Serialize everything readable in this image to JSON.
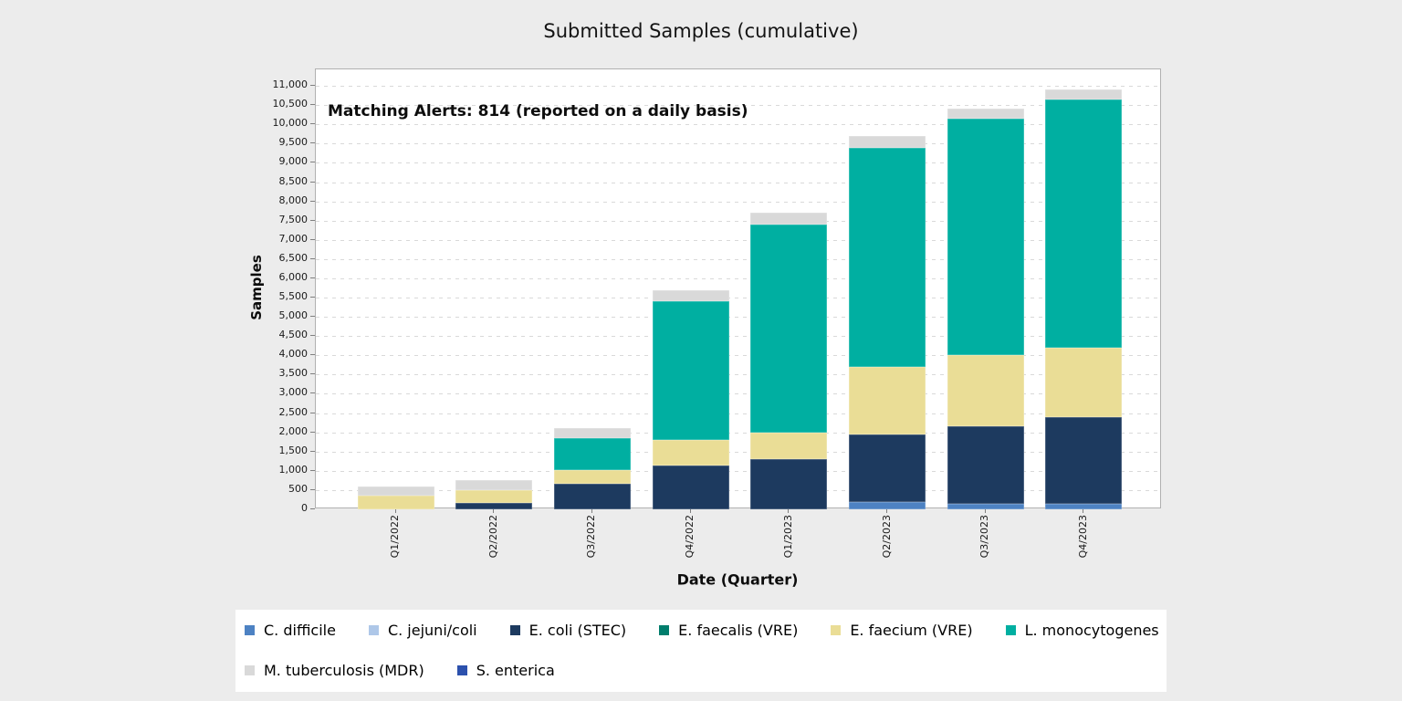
{
  "chart_data": {
    "type": "bar",
    "stacked": true,
    "title": "Submitted Samples (cumulative)",
    "annotation": "Matching Alerts: 814 (reported on a daily basis)",
    "xlabel": "Date (Quarter)",
    "ylabel": "Samples",
    "legend_position": "bottom",
    "grid": "horizontal dashed",
    "plot_background": "#ffffff",
    "page_background": "#ececec",
    "ylim": [
      0,
      11430
    ],
    "ytick_step": 500,
    "ytick_max": 11000,
    "categories": [
      "Q1/2022",
      "Q2/2022",
      "Q3/2022",
      "Q4/2022",
      "Q1/2023",
      "Q2/2023",
      "Q3/2023",
      "Q4/2023"
    ],
    "series": [
      {
        "name": "C. difficile",
        "color": "#4d82c3",
        "values": [
          0,
          0,
          0,
          0,
          0,
          200,
          150,
          150
        ]
      },
      {
        "name": "C. jejuni/coli",
        "color": "#aec7e8",
        "values": [
          0,
          0,
          0,
          0,
          0,
          0,
          0,
          0
        ]
      },
      {
        "name": "E. coli (STEC)",
        "color": "#1d3a5f",
        "values": [
          0,
          175,
          675,
          1150,
          1300,
          1750,
          2000,
          2250
        ]
      },
      {
        "name": "E. faecalis (VRE)",
        "color": "#007d6c",
        "values": [
          0,
          0,
          0,
          0,
          0,
          0,
          0,
          0
        ]
      },
      {
        "name": "E. faecium (VRE)",
        "color": "#eadd96",
        "values": [
          350,
          325,
          350,
          650,
          700,
          1750,
          1850,
          1800
        ]
      },
      {
        "name": "L. monocytogenes",
        "color": "#00afa1",
        "values": [
          0,
          0,
          825,
          3600,
          5400,
          5700,
          6150,
          6450
        ]
      },
      {
        "name": "M. tuberculosis (MDR)",
        "color": "#d9d9d9",
        "values": [
          250,
          250,
          250,
          300,
          300,
          300,
          250,
          250
        ]
      },
      {
        "name": "S. enterica",
        "color": "#2c51ad",
        "values": [
          0,
          0,
          0,
          0,
          0,
          0,
          0,
          0
        ]
      }
    ]
  }
}
